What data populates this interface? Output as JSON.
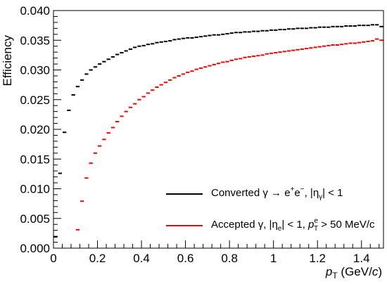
{
  "chart_data": {
    "type": "scatter",
    "xlabel_var": "p",
    "xlabel_sub": "T",
    "xlabel_unit_open": " (GeV/",
    "xlabel_unit_c": "c",
    "xlabel_unit_close": ")",
    "ylabel": "Efficiency",
    "xlim": [
      0,
      1.5
    ],
    "ylim": [
      0,
      0.04
    ],
    "xticks": [
      "0",
      "0.2",
      "0.4",
      "0.6",
      "0.8",
      "1",
      "1.2",
      "1.4"
    ],
    "yticks": [
      "0.000",
      "0.005",
      "0.010",
      "0.015",
      "0.020",
      "0.025",
      "0.030",
      "0.035",
      "0.040"
    ],
    "xtick_values": [
      0,
      0.2,
      0.4,
      0.6,
      0.8,
      1.0,
      1.2,
      1.4
    ],
    "ytick_values": [
      0,
      0.005,
      0.01,
      0.015,
      0.02,
      0.025,
      0.03,
      0.035,
      0.04
    ],
    "bin_width": 0.02,
    "legend_position": "bottom-right",
    "series": [
      {
        "color": "#000000",
        "legend_parts": {
          "main": "Converted γ → e",
          "sup1": "+",
          "mid": "e",
          "sup2": "−",
          "rest": ", |η",
          "sub": "γ",
          "end": "| < 1"
        },
        "x": [
          0.01,
          0.03,
          0.05,
          0.07,
          0.09,
          0.11,
          0.13,
          0.15,
          0.17,
          0.19,
          0.21,
          0.23,
          0.25,
          0.27,
          0.29,
          0.31,
          0.33,
          0.35,
          0.37,
          0.39,
          0.41,
          0.43,
          0.45,
          0.47,
          0.49,
          0.51,
          0.53,
          0.55,
          0.57,
          0.59,
          0.61,
          0.63,
          0.65,
          0.67,
          0.69,
          0.71,
          0.73,
          0.75,
          0.77,
          0.79,
          0.81,
          0.83,
          0.85,
          0.87,
          0.89,
          0.91,
          0.93,
          0.95,
          0.97,
          0.99,
          1.01,
          1.03,
          1.05,
          1.07,
          1.09,
          1.11,
          1.13,
          1.15,
          1.17,
          1.19,
          1.21,
          1.23,
          1.25,
          1.27,
          1.29,
          1.31,
          1.33,
          1.35,
          1.37,
          1.39,
          1.41,
          1.43,
          1.45,
          1.47,
          1.49
        ],
        "y": [
          0.0019,
          0.0126,
          0.0195,
          0.0232,
          0.0258,
          0.0272,
          0.0283,
          0.0293,
          0.03,
          0.0305,
          0.031,
          0.0314,
          0.0318,
          0.0322,
          0.0326,
          0.0329,
          0.0332,
          0.0335,
          0.0338,
          0.034,
          0.0341,
          0.0343,
          0.0344,
          0.0346,
          0.0347,
          0.0348,
          0.0349,
          0.0351,
          0.0352,
          0.0353,
          0.0354,
          0.0354,
          0.0355,
          0.0356,
          0.0357,
          0.0358,
          0.0359,
          0.0359,
          0.036,
          0.0361,
          0.0362,
          0.0363,
          0.0363,
          0.0364,
          0.0364,
          0.0365,
          0.0365,
          0.0366,
          0.0366,
          0.0367,
          0.0367,
          0.0368,
          0.0368,
          0.0369,
          0.0369,
          0.037,
          0.037,
          0.037,
          0.0371,
          0.0371,
          0.0372,
          0.0372,
          0.0372,
          0.0373,
          0.0373,
          0.0373,
          0.0374,
          0.0374,
          0.0374,
          0.0375,
          0.0375,
          0.0375,
          0.0376,
          0.0376,
          0.0373
        ]
      },
      {
        "color": "#ff0000",
        "legend_parts": {
          "main": "Accepted γ, |η",
          "sub1": "e",
          "mid": "| < 1, ",
          "var": "p",
          "sub2": "T",
          "sup": "e",
          "end": " > 50 MeV/c"
        },
        "x": [
          0.11,
          0.13,
          0.15,
          0.17,
          0.19,
          0.21,
          0.23,
          0.25,
          0.27,
          0.29,
          0.31,
          0.33,
          0.35,
          0.37,
          0.39,
          0.41,
          0.43,
          0.45,
          0.47,
          0.49,
          0.51,
          0.53,
          0.55,
          0.57,
          0.59,
          0.61,
          0.63,
          0.65,
          0.67,
          0.69,
          0.71,
          0.73,
          0.75,
          0.77,
          0.79,
          0.81,
          0.83,
          0.85,
          0.87,
          0.89,
          0.91,
          0.93,
          0.95,
          0.97,
          0.99,
          1.01,
          1.03,
          1.05,
          1.07,
          1.09,
          1.11,
          1.13,
          1.15,
          1.17,
          1.19,
          1.21,
          1.23,
          1.25,
          1.27,
          1.29,
          1.31,
          1.33,
          1.35,
          1.37,
          1.39,
          1.41,
          1.43,
          1.45,
          1.47,
          1.49
        ],
        "y": [
          0.0031,
          0.0079,
          0.0118,
          0.0143,
          0.016,
          0.0172,
          0.0183,
          0.0194,
          0.0203,
          0.0213,
          0.0222,
          0.023,
          0.0237,
          0.0243,
          0.025,
          0.0255,
          0.0261,
          0.0266,
          0.0271,
          0.0275,
          0.0279,
          0.0283,
          0.0287,
          0.029,
          0.0293,
          0.0296,
          0.0298,
          0.0301,
          0.0303,
          0.0305,
          0.0307,
          0.0309,
          0.0311,
          0.0313,
          0.0314,
          0.0316,
          0.0318,
          0.0319,
          0.0321,
          0.0322,
          0.0323,
          0.0324,
          0.0325,
          0.0327,
          0.0328,
          0.0329,
          0.033,
          0.0331,
          0.0332,
          0.0333,
          0.0334,
          0.0335,
          0.0336,
          0.0337,
          0.0338,
          0.0339,
          0.034,
          0.0341,
          0.0342,
          0.0342,
          0.0343,
          0.0344,
          0.0345,
          0.0345,
          0.0346,
          0.0347,
          0.0348,
          0.0349,
          0.0352,
          0.035
        ]
      }
    ]
  }
}
